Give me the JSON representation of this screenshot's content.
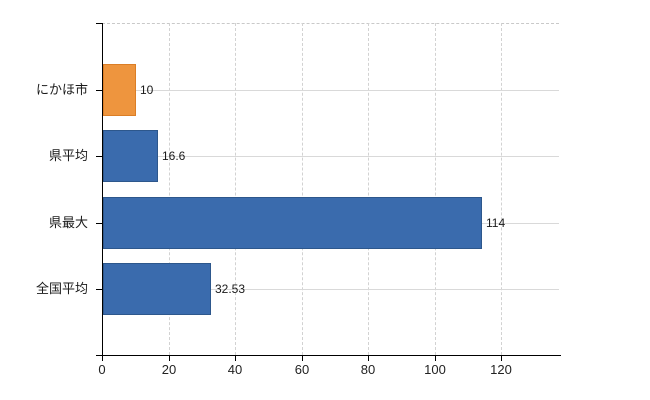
{
  "chart_data": {
    "type": "bar",
    "orientation": "horizontal",
    "title": "",
    "categories": [
      "にかほ市",
      "県平均",
      "県最大",
      "全国平均"
    ],
    "values": [
      10,
      16.6,
      114,
      32.53
    ],
    "value_labels": [
      "10",
      "16.6",
      "114",
      "32.53"
    ],
    "series_colors": [
      {
        "fill": "#EE953E",
        "border": "#DB7E26"
      },
      {
        "fill": "#3A6BAD",
        "border": "#2D578C"
      },
      {
        "fill": "#3A6BAD",
        "border": "#2D578C"
      },
      {
        "fill": "#3A6BAD",
        "border": "#2D578C"
      }
    ],
    "x_ticks": [
      "0",
      "20",
      "40",
      "60",
      "80",
      "100",
      "120"
    ],
    "x_tick_values": [
      0,
      20,
      40,
      60,
      80,
      100,
      120
    ],
    "xlim": [
      0,
      137.5
    ],
    "legend": "none",
    "grid": {
      "vertical_dashed": true,
      "horizontal_category_lines": true,
      "top_border_dashed": true
    },
    "colors": {
      "axis": "#000000",
      "gridline": "#d9d9d9",
      "label": "#1a1a1a",
      "background": "#ffffff"
    }
  }
}
